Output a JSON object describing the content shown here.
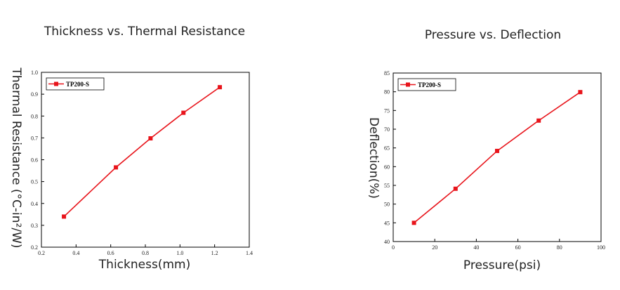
{
  "chart_data": [
    {
      "type": "line",
      "title": "Thickness vs. Thermal Resistance",
      "xlabel": "Thickness(mm)",
      "ylabel": "Thermal Resistance (°C-in²/W)",
      "xlim": [
        0.2,
        1.4
      ],
      "ylim": [
        0.2,
        1.0
      ],
      "xticks": [
        "0.2",
        "0.4",
        "0.6",
        "0.8",
        "1.0",
        "1.2",
        "1.4"
      ],
      "yticks": [
        "0.2",
        "0.3",
        "0.4",
        "0.5",
        "0.6",
        "0.7",
        "0.8",
        "0.9",
        "1.0"
      ],
      "legend": "top-left",
      "grid": false,
      "series": [
        {
          "name": "TP200-S",
          "color": "#e8141b",
          "marker": "square",
          "x": [
            0.33,
            0.63,
            0.83,
            1.02,
            1.23
          ],
          "y": [
            0.34,
            0.565,
            0.698,
            0.815,
            0.932
          ]
        }
      ]
    },
    {
      "type": "line",
      "title": "Pressure vs. Deflection",
      "xlabel": "Pressure(psi)",
      "ylabel": "Deflection(%)",
      "xlim": [
        0,
        100
      ],
      "ylim": [
        40,
        85
      ],
      "xticks": [
        "0",
        "20",
        "40",
        "60",
        "80",
        "100"
      ],
      "yticks": [
        "40",
        "45",
        "50",
        "55",
        "60",
        "65",
        "70",
        "75",
        "80",
        "85"
      ],
      "legend": "top-left",
      "grid": false,
      "series": [
        {
          "name": "TP200-S",
          "color": "#e8141b",
          "marker": "square",
          "x": [
            10,
            30,
            50,
            70,
            90
          ],
          "y": [
            45,
            54.1,
            64.2,
            72.3,
            79.9
          ]
        }
      ]
    }
  ]
}
